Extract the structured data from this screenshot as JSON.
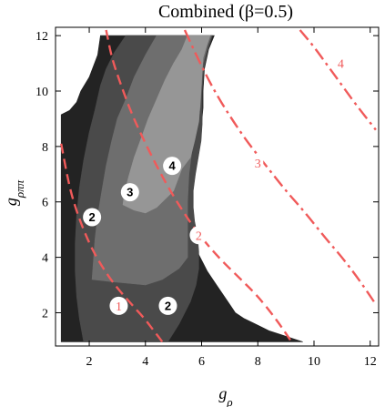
{
  "chart_data": {
    "type": "contour",
    "title": "Combined (β=0.5)",
    "xlabel": "gρ",
    "ylabel": "gρππ",
    "xlim": [
      0.8,
      12.3
    ],
    "ylim": [
      0.8,
      12.3
    ],
    "xticks": [
      2,
      4,
      6,
      8,
      10,
      12
    ],
    "yticks": [
      2,
      4,
      6,
      8,
      10,
      12
    ],
    "grid": false,
    "colors": {
      "region1": "#232323",
      "region2": "#4a4a4a",
      "region3": "#6e6e6e",
      "region4": "#969696",
      "curve": "#f05a5a",
      "curve_label_bg": "#ffffff"
    },
    "regions": [
      {
        "name": "1",
        "polygon": [
          [
            1.0,
            0.95
          ],
          [
            9.6,
            0.95
          ],
          [
            9.3,
            1.05
          ],
          [
            9.0,
            1.15
          ],
          [
            8.7,
            1.25
          ],
          [
            8.4,
            1.35
          ],
          [
            8.1,
            1.5
          ],
          [
            7.8,
            1.65
          ],
          [
            7.5,
            1.8
          ],
          [
            7.2,
            2.0
          ],
          [
            7.0,
            2.3
          ],
          [
            6.8,
            2.6
          ],
          [
            6.6,
            2.9
          ],
          [
            6.4,
            3.2
          ],
          [
            6.2,
            3.5
          ],
          [
            6.05,
            3.8
          ],
          [
            5.9,
            4.1
          ],
          [
            5.8,
            4.4
          ],
          [
            5.7,
            4.7
          ],
          [
            5.65,
            5.0
          ],
          [
            5.6,
            5.5
          ],
          [
            5.6,
            6.0
          ],
          [
            5.62,
            6.5
          ],
          [
            5.65,
            7.0
          ],
          [
            5.75,
            7.6
          ],
          [
            5.9,
            8.2
          ],
          [
            6.0,
            8.8
          ],
          [
            6.05,
            9.4
          ],
          [
            6.05,
            10.0
          ],
          [
            6.1,
            10.8
          ],
          [
            6.25,
            11.5
          ],
          [
            6.45,
            12.0
          ],
          [
            6.45,
            12.0
          ],
          [
            2.4,
            12.0
          ],
          [
            2.3,
            11.3
          ],
          [
            2.0,
            10.5
          ],
          [
            1.7,
            10.0
          ],
          [
            1.55,
            9.6
          ],
          [
            1.3,
            9.3
          ],
          [
            1.0,
            9.15
          ]
        ]
      },
      {
        "name": "2",
        "polygon": [
          [
            4.8,
            0.95
          ],
          [
            5.2,
            1.6
          ],
          [
            5.6,
            2.4
          ],
          [
            5.8,
            3.0
          ],
          [
            5.9,
            3.6
          ],
          [
            5.9,
            4.2
          ],
          [
            5.85,
            4.8
          ],
          [
            5.75,
            5.3
          ],
          [
            5.7,
            5.8
          ],
          [
            5.7,
            6.4
          ],
          [
            5.78,
            7.0
          ],
          [
            5.88,
            7.6
          ],
          [
            5.98,
            8.2
          ],
          [
            6.02,
            8.8
          ],
          [
            6.02,
            9.4
          ],
          [
            6.02,
            10.0
          ],
          [
            6.08,
            10.8
          ],
          [
            6.2,
            11.4
          ],
          [
            6.38,
            12.0
          ],
          [
            3.3,
            12.0
          ],
          [
            2.9,
            11.4
          ],
          [
            2.6,
            10.8
          ],
          [
            2.4,
            10.2
          ],
          [
            2.2,
            9.3
          ],
          [
            2.0,
            8.5
          ],
          [
            1.8,
            7.5
          ],
          [
            1.65,
            6.5
          ],
          [
            1.55,
            5.5
          ],
          [
            1.5,
            4.5
          ],
          [
            1.5,
            3.5
          ],
          [
            1.55,
            2.6
          ],
          [
            1.65,
            1.8
          ],
          [
            1.8,
            0.95
          ]
        ]
      },
      {
        "name": "3",
        "polygon": [
          [
            2.1,
            3.2
          ],
          [
            3.0,
            3.1
          ],
          [
            4.0,
            3.0
          ],
          [
            4.6,
            3.2
          ],
          [
            5.2,
            3.6
          ],
          [
            5.5,
            4.0
          ],
          [
            5.5,
            5.0
          ],
          [
            5.5,
            6.0
          ],
          [
            5.55,
            7.0
          ],
          [
            5.65,
            7.8
          ],
          [
            5.8,
            8.6
          ],
          [
            5.95,
            9.4
          ],
          [
            6.0,
            10.2
          ],
          [
            6.05,
            11.0
          ],
          [
            6.2,
            11.6
          ],
          [
            6.35,
            12.0
          ],
          [
            4.4,
            12.0
          ],
          [
            4.0,
            11.3
          ],
          [
            3.6,
            10.5
          ],
          [
            3.3,
            9.7
          ],
          [
            3.0,
            9.0
          ],
          [
            2.8,
            8.2
          ],
          [
            2.6,
            7.3
          ],
          [
            2.45,
            6.4
          ],
          [
            2.3,
            5.5
          ],
          [
            2.2,
            4.6
          ],
          [
            2.15,
            3.9
          ]
        ]
      },
      {
        "name": "4",
        "polygon": [
          [
            3.2,
            5.9
          ],
          [
            3.6,
            5.7
          ],
          [
            4.0,
            5.6
          ],
          [
            4.4,
            5.8
          ],
          [
            4.7,
            6.1
          ],
          [
            5.0,
            6.4
          ],
          [
            5.15,
            6.8
          ],
          [
            5.3,
            7.2
          ],
          [
            5.45,
            7.4
          ],
          [
            5.6,
            7.6
          ],
          [
            5.75,
            8.2
          ],
          [
            5.9,
            8.9
          ],
          [
            5.95,
            9.6
          ],
          [
            6.0,
            10.4
          ],
          [
            6.05,
            11.2
          ],
          [
            6.2,
            11.7
          ],
          [
            6.3,
            12.0
          ],
          [
            5.5,
            12.0
          ],
          [
            5.3,
            11.5
          ],
          [
            5.0,
            11.0
          ],
          [
            4.7,
            10.4
          ],
          [
            4.4,
            9.7
          ],
          [
            4.1,
            9.0
          ],
          [
            3.85,
            8.3
          ],
          [
            3.6,
            7.6
          ],
          [
            3.4,
            6.9
          ],
          [
            3.25,
            6.3
          ]
        ]
      }
    ],
    "curves": [
      {
        "name": "1",
        "style": "dashed",
        "x": [
          1.0,
          1.3,
          1.6,
          2.0,
          2.4,
          2.8,
          3.2,
          3.6,
          4.0,
          4.3,
          4.6
        ],
        "y": [
          8.1,
          6.5,
          5.5,
          4.5,
          3.75,
          3.15,
          2.65,
          2.2,
          1.75,
          1.35,
          0.95
        ],
        "label_at": [
          3.05,
          2.25
        ]
      },
      {
        "name": "2",
        "style": "dashed",
        "x": [
          2.6,
          2.8,
          3.1,
          3.5,
          4.0,
          4.5,
          5.0,
          5.5,
          6.0,
          6.6,
          7.3,
          8.0,
          8.7,
          9.2
        ],
        "y": [
          12.2,
          11.2,
          10.3,
          9.2,
          8.1,
          7.1,
          6.2,
          5.4,
          4.7,
          4.0,
          3.3,
          2.6,
          1.7,
          0.95
        ],
        "label_at": [
          5.9,
          4.8
        ]
      },
      {
        "name": "3",
        "style": "dash-dot",
        "x": [
          5.4,
          5.9,
          6.4,
          7.0,
          7.6,
          8.3,
          9.0,
          9.7,
          10.4,
          11.0,
          11.6,
          12.2
        ],
        "y": [
          12.2,
          11.1,
          10.1,
          9.1,
          8.2,
          7.3,
          6.4,
          5.6,
          4.7,
          4.0,
          3.2,
          2.3
        ],
        "label_at": [
          8.0,
          7.4
        ]
      },
      {
        "name": "4",
        "style": "dash-dot",
        "x": [
          9.5,
          10.0,
          10.5,
          11.0,
          11.5,
          12.2
        ],
        "y": [
          12.2,
          11.6,
          10.9,
          10.2,
          9.5,
          8.6
        ],
        "label_at": [
          10.95,
          11.0
        ]
      }
    ],
    "region_labels": [
      {
        "text": "1",
        "x": 3.05,
        "y": 2.25,
        "style": "curve"
      },
      {
        "text": "2",
        "x": 4.8,
        "y": 2.25,
        "style": "region"
      },
      {
        "text": "2",
        "x": 2.1,
        "y": 5.45,
        "style": "region"
      },
      {
        "text": "3",
        "x": 3.45,
        "y": 6.35,
        "style": "region"
      },
      {
        "text": "4",
        "x": 4.95,
        "y": 7.3,
        "style": "region"
      },
      {
        "text": "2",
        "x": 5.9,
        "y": 4.8,
        "style": "curve"
      },
      {
        "text": "3",
        "x": 8.0,
        "y": 7.4,
        "style": "curve-text"
      },
      {
        "text": "4",
        "x": 10.95,
        "y": 11.0,
        "style": "curve-text"
      }
    ]
  }
}
